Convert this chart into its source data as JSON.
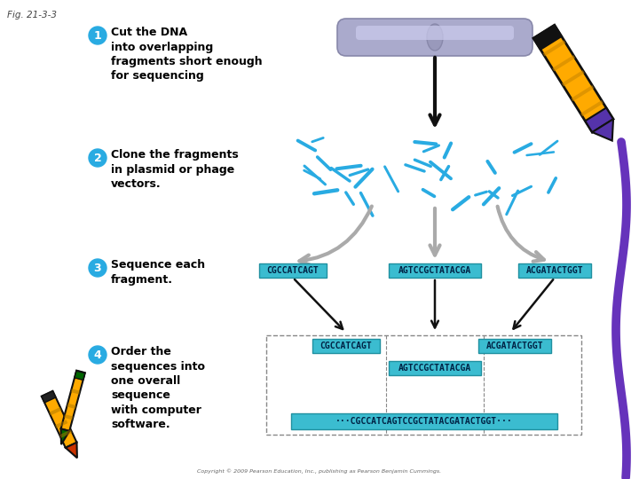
{
  "fig_label": "Fig. 21-3-3",
  "background_color": "#ffffff",
  "step1_num": "1",
  "step1_text": "Cut the DNA\ninto overlapping\nfragments short enough\nfor sequencing",
  "step2_num": "2",
  "step2_text": "Clone the fragments\nin plasmid or phage\nvectors.",
  "step3_num": "3",
  "step3_text": "Sequence each\nfragment.",
  "step4_num": "4",
  "step4_text": "Order the\nsequences into\none overall\nsequence\nwith computer\nsoftware.",
  "circle_color": "#29ABE2",
  "seq_box_color": "#3BBCD0",
  "seq_box_edge": "#2090A0",
  "seq1": "CGCCATCAGT",
  "seq2": "AGTCCGCTATACGA",
  "seq3": "ACGATACTGGT",
  "seq_final": "···CGCCATCAGTCCGCTATACGATACTGGT···",
  "dna_body_color": "#AAAACC",
  "dna_highlight": "#CCCCEE",
  "dna_edge": "#8888AA",
  "fragment_color": "#29ABE2",
  "gray_arrow_color": "#AAAAAA",
  "black_arrow_color": "#111111",
  "purple_color": "#6633BB",
  "copyright": "Copyright © 2009 Pearson Education, Inc., publishing as Pearson Benjamin Cummings."
}
